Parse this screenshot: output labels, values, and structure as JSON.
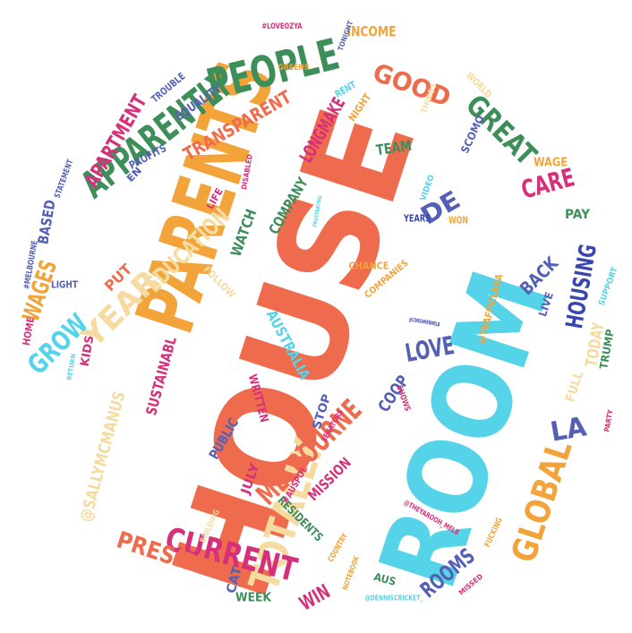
{
  "palette": {
    "orange": "#ef6b4d",
    "cyan": "#55d3e8",
    "amber": "#f2a43a",
    "green": "#3e8e5a",
    "magenta": "#d6307a",
    "blue": "#5560b5",
    "cream": "#f5dba0",
    "navy": "#3a46b0",
    "gray": "#9aa0a6"
  },
  "words": [
    {
      "text": "HOUSE",
      "color": "orange"
    },
    {
      "text": "ROOM",
      "color": "cyan"
    },
    {
      "text": "PARENTS",
      "color": "amber"
    },
    {
      "text": "PEOPLE",
      "color": "green"
    },
    {
      "text": "APPARENTLY",
      "color": "green"
    },
    {
      "text": "TOTALLY",
      "color": "cream"
    },
    {
      "text": "GLOBAL",
      "color": "amber"
    },
    {
      "text": "CURRENT",
      "color": "magenta"
    },
    {
      "text": "MELBOURNE",
      "color": "orange"
    },
    {
      "text": "PRESIDENT",
      "color": "orange"
    },
    {
      "text": "GOOD",
      "color": "orange"
    },
    {
      "text": "YEAR",
      "color": "cream"
    },
    {
      "text": "EDUCATION",
      "color": "cream"
    },
    {
      "text": "WAGES",
      "color": "amber"
    },
    {
      "text": "GROW",
      "color": "cyan"
    },
    {
      "text": "GREAT",
      "color": "green"
    },
    {
      "text": "HOUSING",
      "color": "navy"
    },
    {
      "text": "LOVE",
      "color": "blue"
    },
    {
      "text": "LA",
      "color": "blue"
    },
    {
      "text": "CARE",
      "color": "magenta"
    },
    {
      "text": "DE",
      "color": "blue"
    },
    {
      "text": "APARTMENT",
      "color": "magenta"
    },
    {
      "text": "TRANSPARENT",
      "color": "orange"
    },
    {
      "text": "LONGMAKE",
      "color": "magenta"
    },
    {
      "text": "ROOMS",
      "color": "blue"
    },
    {
      "text": "WIN",
      "color": "magenta"
    },
    {
      "text": "TODAY",
      "color": "cream"
    },
    {
      "text": "@SALLYMCMANUS",
      "color": "cream"
    },
    {
      "text": "SUSTAINABL",
      "color": "magenta"
    },
    {
      "text": "BACK",
      "color": "blue"
    },
    {
      "text": "INCOME",
      "color": "amber"
    },
    {
      "text": "WATCH",
      "color": "green"
    },
    {
      "text": "COMPANY",
      "color": "green"
    },
    {
      "text": "MISSION",
      "color": "magenta"
    },
    {
      "text": "COOP",
      "color": "blue"
    },
    {
      "text": "PUBLIC",
      "color": "blue"
    },
    {
      "text": "TEAM",
      "color": "green"
    },
    {
      "text": "PUT",
      "color": "orange"
    },
    {
      "text": "AUSTRALIA",
      "color": "cyan"
    },
    {
      "text": "STOP",
      "color": "blue"
    },
    {
      "text": "WRITTEN",
      "color": "magenta"
    },
    {
      "text": "BASED",
      "color": "blue"
    },
    {
      "text": "EQUALITY",
      "color": "blue"
    },
    {
      "text": "PROFITS",
      "color": "blue"
    },
    {
      "text": "KIDS",
      "color": "magenta"
    },
    {
      "text": "FULL",
      "color": "cream"
    },
    {
      "text": "TRUMP",
      "color": "green"
    },
    {
      "text": "PAY",
      "color": "green"
    },
    {
      "text": "WAGE",
      "color": "amber"
    },
    {
      "text": "SCOMO",
      "color": "blue"
    },
    {
      "text": "RESIDENTS",
      "color": "green"
    },
    {
      "text": "JULY",
      "color": "magenta"
    },
    {
      "text": "CAT",
      "color": "blue"
    },
    {
      "text": "WEEK",
      "color": "green"
    },
    {
      "text": "AUS",
      "color": "green"
    },
    {
      "text": "LIVE",
      "color": "blue"
    },
    {
      "text": "@TRAFFICLARA",
      "color": "amber"
    },
    {
      "text": "CHANCE",
      "color": "amber"
    },
    {
      "text": "COMPANIES",
      "color": "amber"
    },
    {
      "text": "YEARS",
      "color": "navy"
    },
    {
      "text": "WON",
      "color": "amber"
    },
    {
      "text": "LIFE",
      "color": "magenta"
    },
    {
      "text": "FOLLOW",
      "color": "cream"
    },
    {
      "text": "HOME",
      "color": "magenta"
    },
    {
      "text": "LIGHT",
      "color": "blue"
    },
    {
      "text": "#MELBOURNE",
      "color": "blue"
    },
    {
      "text": "STATEMENT",
      "color": "blue"
    },
    {
      "text": "EN",
      "color": "blue"
    },
    {
      "text": "TROUBLE",
      "color": "blue"
    },
    {
      "text": "#LOVEOZYA",
      "color": "magenta"
    },
    {
      "text": "TONIGHT",
      "color": "blue"
    },
    {
      "text": "GREENS",
      "color": "amber"
    },
    {
      "text": "RENT",
      "color": "cyan"
    },
    {
      "text": "NIGHT",
      "color": "amber"
    },
    {
      "text": "THINGS",
      "color": "cream"
    },
    {
      "text": "WORLD",
      "color": "cream"
    },
    {
      "text": "VIDEO",
      "color": "cyan"
    },
    {
      "text": "DISABLED",
      "color": "magenta"
    },
    {
      "text": "SUPPORT",
      "color": "cyan"
    },
    {
      "text": "PARTY",
      "color": "magenta"
    },
    {
      "text": "SHOWS",
      "color": "magenta"
    },
    {
      "text": "SENATORS",
      "color": "magenta"
    },
    {
      "text": "#AUSPOL",
      "color": "magenta"
    },
    {
      "text": "BUILDING",
      "color": "cream"
    },
    {
      "text": "COUNTRY",
      "color": "amber"
    },
    {
      "text": "NOTEBOOK",
      "color": "amber"
    },
    {
      "text": "@THEYAROOH_MELB",
      "color": "magenta"
    },
    {
      "text": "FUCKING",
      "color": "amber"
    },
    {
      "text": "MISSED",
      "color": "magenta"
    },
    {
      "text": "@DENNISCRICKET_",
      "color": "cyan"
    },
    {
      "text": "@CONSUMERMELB",
      "color": "navy"
    },
    {
      "text": "RETURN",
      "color": "cyan"
    },
    {
      "text": "FRUSTRATING",
      "color": "cyan"
    }
  ]
}
